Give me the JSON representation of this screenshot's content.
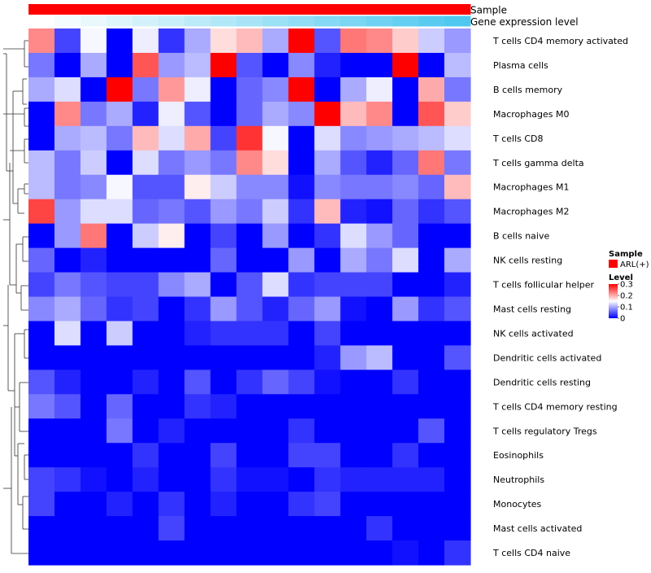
{
  "chart_data": {
    "type": "heatmap",
    "title": "",
    "annotation_labels": {
      "sample": "Sample",
      "expression": "Gene expression level"
    },
    "sample_group": "ARL(+)",
    "sample_color": "#ff0000",
    "annotation_gradient": [
      "#ffffff",
      "#4fc8ef"
    ],
    "rows": [
      "T cells CD4 memory activated",
      "Plasma cells",
      "B cells memory",
      "Macrophages M0",
      "T cells CD8",
      "T cells gamma delta",
      "Macrophages M1",
      "Macrophages M2",
      "B cells naive",
      "NK cells resting",
      "T cells follicular helper",
      "Mast cells resting",
      "NK cells activated",
      "Dendritic cells activated",
      "Dendritic cells resting",
      "T cells CD4 memory resting",
      "T cells regulatory  Tregs",
      "Eosinophils",
      "Neutrophils",
      "Monocytes",
      "Mast cells activated",
      "T cells CD4 naive"
    ],
    "n_columns": 17,
    "values": [
      [
        0.22,
        0.04,
        0.145,
        0.0,
        0.14,
        0.03,
        0.1,
        0.17,
        0.19,
        0.1,
        0.3,
        0.05,
        0.23,
        0.22,
        0.18,
        0.12,
        0.09
      ],
      [
        0.07,
        0.0,
        0.1,
        0.0,
        0.25,
        0.09,
        0.11,
        0.3,
        0.05,
        0.0,
        0.08,
        0.02,
        0.0,
        0.0,
        0.3,
        0.0,
        0.11
      ],
      [
        0.1,
        0.13,
        0.0,
        0.3,
        0.07,
        0.21,
        0.14,
        0.0,
        0.06,
        0.08,
        0.3,
        0.0,
        0.1,
        0.14,
        0.0,
        0.2,
        0.07
      ],
      [
        0.0,
        0.22,
        0.07,
        0.1,
        0.02,
        0.14,
        0.05,
        0.0,
        0.06,
        0.1,
        0.08,
        0.3,
        0.19,
        0.22,
        0.0,
        0.25,
        0.18
      ],
      [
        0.0,
        0.1,
        0.11,
        0.07,
        0.19,
        0.13,
        0.2,
        0.04,
        0.27,
        0.145,
        0.0,
        0.13,
        0.08,
        0.09,
        0.1,
        0.11,
        0.13
      ],
      [
        0.11,
        0.07,
        0.12,
        0.0,
        0.13,
        0.07,
        0.09,
        0.07,
        0.22,
        0.17,
        0.0,
        0.1,
        0.05,
        0.02,
        0.06,
        0.23,
        0.07
      ],
      [
        0.11,
        0.07,
        0.08,
        0.145,
        0.05,
        0.05,
        0.16,
        0.12,
        0.08,
        0.08,
        0.01,
        0.08,
        0.07,
        0.07,
        0.08,
        0.06,
        0.19
      ],
      [
        0.26,
        0.09,
        0.13,
        0.13,
        0.06,
        0.07,
        0.05,
        0.09,
        0.07,
        0.12,
        0.03,
        0.19,
        0.02,
        0.01,
        0.06,
        0.03,
        0.05
      ],
      [
        0.0,
        0.09,
        0.23,
        0.0,
        0.12,
        0.16,
        0.0,
        0.04,
        0.0,
        0.09,
        0.0,
        0.03,
        0.13,
        0.09,
        0.06,
        0.0,
        0.0
      ],
      [
        0.06,
        0.0,
        0.02,
        0.0,
        0.0,
        0.0,
        0.0,
        0.06,
        0.0,
        0.0,
        0.09,
        0.0,
        0.1,
        0.07,
        0.13,
        0.0,
        0.1
      ],
      [
        0.04,
        0.07,
        0.05,
        0.04,
        0.04,
        0.08,
        0.1,
        0.0,
        0.05,
        0.13,
        0.03,
        0.04,
        0.04,
        0.04,
        0.0,
        0.0,
        0.02
      ],
      [
        0.08,
        0.1,
        0.06,
        0.03,
        0.04,
        0.0,
        0.03,
        0.09,
        0.05,
        0.02,
        0.06,
        0.09,
        0.01,
        0.0,
        0.09,
        0.03,
        0.05
      ],
      [
        0.0,
        0.13,
        0.0,
        0.12,
        0.0,
        0.0,
        0.02,
        0.03,
        0.03,
        0.03,
        0.0,
        0.04,
        0.0,
        0.0,
        0.0,
        0.0,
        0.0
      ],
      [
        0.0,
        0.0,
        0.0,
        0.0,
        0.0,
        0.0,
        0.0,
        0.0,
        0.0,
        0.0,
        0.0,
        0.02,
        0.09,
        0.11,
        0.0,
        0.0,
        0.05
      ],
      [
        0.05,
        0.02,
        0.0,
        0.0,
        0.02,
        0.0,
        0.05,
        0.0,
        0.03,
        0.06,
        0.04,
        0.01,
        0.0,
        0.0,
        0.03,
        0.0,
        0.0
      ],
      [
        0.07,
        0.05,
        0.0,
        0.06,
        0.0,
        0.0,
        0.03,
        0.02,
        0.0,
        0.0,
        0.0,
        0.0,
        0.0,
        0.0,
        0.0,
        0.0,
        0.0
      ],
      [
        0.0,
        0.0,
        0.0,
        0.07,
        0.0,
        0.02,
        0.0,
        0.0,
        0.0,
        0.0,
        0.03,
        0.0,
        0.0,
        0.0,
        0.0,
        0.05,
        0.0
      ],
      [
        0.0,
        0.0,
        0.0,
        0.0,
        0.03,
        0.0,
        0.0,
        0.04,
        0.0,
        0.0,
        0.04,
        0.04,
        0.0,
        0.0,
        0.03,
        0.0,
        0.0
      ],
      [
        0.04,
        0.03,
        0.01,
        0.0,
        0.02,
        0.0,
        0.0,
        0.03,
        0.01,
        0.01,
        0.0,
        0.03,
        0.02,
        0.02,
        0.02,
        0.02,
        0.0
      ],
      [
        0.04,
        0.0,
        0.0,
        0.02,
        0.0,
        0.03,
        0.0,
        0.02,
        0.0,
        0.0,
        0.03,
        0.04,
        0.0,
        0.0,
        0.0,
        0.0,
        0.0
      ],
      [
        0.0,
        0.0,
        0.0,
        0.0,
        0.0,
        0.04,
        0.0,
        0.0,
        0.0,
        0.0,
        0.0,
        0.0,
        0.0,
        0.03,
        0.0,
        0.0,
        0.0
      ],
      [
        0.0,
        0.0,
        0.0,
        0.0,
        0.0,
        0.0,
        0.0,
        0.0,
        0.0,
        0.0,
        0.0,
        0.0,
        0.0,
        0.0,
        0.01,
        0.0,
        0.03
      ]
    ],
    "color_scale": {
      "low": "#0000ff",
      "mid": "#ffffff",
      "high": "#ff0000",
      "min": 0,
      "mid_value": 0.15,
      "max": 0.3
    },
    "legend": {
      "sample_title": "Sample",
      "level_title": "Level",
      "ticks": [
        0,
        0.1,
        0.2,
        0.3
      ],
      "tick_labels": [
        "0",
        "0.1",
        "0.2",
        "0.3"
      ],
      "position": "right"
    }
  }
}
